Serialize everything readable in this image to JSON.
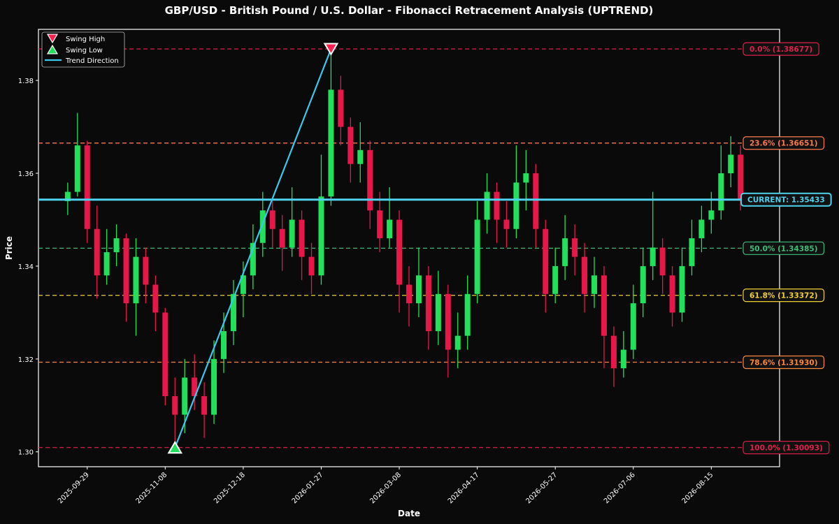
{
  "chart_data": {
    "type": "candlestick",
    "title": "GBP/USD - British Pound / U.S. Dollar - Fibonacci Retracement Analysis (UPTREND)",
    "x_label": "Date",
    "y_label": "Price",
    "xlim": [
      "2025-09-04",
      "2026-09-19"
    ],
    "xticks": [
      "2025-09-29",
      "2025-11-08",
      "2025-12-18",
      "2026-01-27",
      "2026-03-08",
      "2026-04-17",
      "2026-05-27",
      "2026-07-06",
      "2026-08-15"
    ],
    "ylim": [
      1.2968,
      1.391
    ],
    "yticks": [
      {
        "value": 1.3,
        "label": "1.30"
      },
      {
        "value": 1.32,
        "label": "1.32"
      },
      {
        "value": 1.34,
        "label": "1.34"
      },
      {
        "value": 1.36,
        "label": "1.36"
      },
      {
        "value": 1.38,
        "label": "1.38"
      }
    ],
    "up_color": "#22e05a",
    "down_color": "#e8174a",
    "x": [
      "2025-09-19",
      "2025-09-24",
      "2025-09-29",
      "2025-10-04",
      "2025-10-09",
      "2025-10-14",
      "2025-10-19",
      "2025-10-24",
      "2025-10-29",
      "2025-11-03",
      "2025-11-08",
      "2025-11-13",
      "2025-11-18",
      "2025-11-23",
      "2025-11-28",
      "2025-12-03",
      "2025-12-08",
      "2025-12-13",
      "2025-12-18",
      "2025-12-23",
      "2025-12-28",
      "2026-01-02",
      "2026-01-07",
      "2026-01-12",
      "2026-01-17",
      "2026-01-22",
      "2026-01-27",
      "2026-02-01",
      "2026-02-06",
      "2026-02-11",
      "2026-02-16",
      "2026-02-21",
      "2026-02-26",
      "2026-03-03",
      "2026-03-08",
      "2026-03-13",
      "2026-03-18",
      "2026-03-23",
      "2026-03-28",
      "2026-04-02",
      "2026-04-07",
      "2026-04-12",
      "2026-04-17",
      "2026-04-22",
      "2026-04-27",
      "2026-05-02",
      "2026-05-07",
      "2026-05-12",
      "2026-05-17",
      "2026-05-22",
      "2026-05-27",
      "2026-06-01",
      "2026-06-06",
      "2026-06-11",
      "2026-06-16",
      "2026-06-21",
      "2026-06-26",
      "2026-07-01",
      "2026-07-06",
      "2026-07-11",
      "2026-07-16",
      "2026-07-21",
      "2026-07-26",
      "2026-07-31",
      "2026-08-05",
      "2026-08-10",
      "2026-08-15",
      "2026-08-20",
      "2026-08-25",
      "2026-08-30"
    ],
    "open": [
      1.354,
      1.356,
      1.366,
      1.348,
      1.338,
      1.343,
      1.346,
      1.332,
      1.342,
      1.336,
      1.33,
      1.312,
      1.308,
      1.316,
      1.312,
      1.308,
      1.32,
      1.326,
      1.334,
      1.338,
      1.345,
      1.352,
      1.348,
      1.344,
      1.35,
      1.342,
      1.338,
      1.355,
      1.378,
      1.37,
      1.362,
      1.365,
      1.352,
      1.346,
      1.35,
      1.336,
      1.332,
      1.338,
      1.326,
      1.334,
      1.322,
      1.325,
      1.334,
      1.35,
      1.356,
      1.35,
      1.348,
      1.358,
      1.36,
      1.348,
      1.334,
      1.34,
      1.346,
      1.342,
      1.334,
      1.338,
      1.325,
      1.318,
      1.322,
      1.332,
      1.34,
      1.344,
      1.338,
      1.33,
      1.34,
      1.346,
      1.35,
      1.352,
      1.36,
      1.364
    ],
    "high": [
      1.358,
      1.373,
      1.367,
      1.353,
      1.348,
      1.349,
      1.347,
      1.346,
      1.344,
      1.338,
      1.331,
      1.316,
      1.32,
      1.321,
      1.315,
      1.324,
      1.33,
      1.337,
      1.341,
      1.349,
      1.356,
      1.354,
      1.351,
      1.357,
      1.352,
      1.345,
      1.364,
      1.38677,
      1.381,
      1.372,
      1.371,
      1.367,
      1.356,
      1.357,
      1.352,
      1.34,
      1.344,
      1.34,
      1.339,
      1.336,
      1.33,
      1.338,
      1.354,
      1.36,
      1.358,
      1.354,
      1.366,
      1.365,
      1.362,
      1.35,
      1.344,
      1.351,
      1.349,
      1.345,
      1.342,
      1.34,
      1.327,
      1.326,
      1.336,
      1.344,
      1.356,
      1.346,
      1.34,
      1.344,
      1.35,
      1.353,
      1.356,
      1.366,
      1.368,
      1.366
    ],
    "low": [
      1.351,
      1.355,
      1.345,
      1.333,
      1.336,
      1.34,
      1.328,
      1.325,
      1.332,
      1.326,
      1.31,
      1.30093,
      1.304,
      1.309,
      1.303,
      1.306,
      1.317,
      1.323,
      1.329,
      1.335,
      1.342,
      1.344,
      1.339,
      1.342,
      1.337,
      1.334,
      1.336,
      1.353,
      1.366,
      1.358,
      1.358,
      1.348,
      1.343,
      1.344,
      1.33,
      1.327,
      1.329,
      1.322,
      1.323,
      1.316,
      1.318,
      1.322,
      1.332,
      1.347,
      1.345,
      1.344,
      1.346,
      1.352,
      1.344,
      1.33,
      1.332,
      1.337,
      1.338,
      1.33,
      1.331,
      1.318,
      1.314,
      1.316,
      1.32,
      1.329,
      1.337,
      1.334,
      1.327,
      1.328,
      1.338,
      1.343,
      1.347,
      1.35,
      1.357,
      1.352
    ],
    "close": [
      1.356,
      1.366,
      1.348,
      1.338,
      1.343,
      1.346,
      1.332,
      1.342,
      1.336,
      1.33,
      1.312,
      1.308,
      1.316,
      1.312,
      1.308,
      1.32,
      1.326,
      1.334,
      1.338,
      1.345,
      1.352,
      1.348,
      1.344,
      1.35,
      1.342,
      1.338,
      1.355,
      1.378,
      1.37,
      1.362,
      1.365,
      1.352,
      1.346,
      1.35,
      1.336,
      1.332,
      1.338,
      1.326,
      1.334,
      1.322,
      1.325,
      1.334,
      1.35,
      1.356,
      1.35,
      1.348,
      1.358,
      1.36,
      1.348,
      1.334,
      1.34,
      1.346,
      1.342,
      1.334,
      1.338,
      1.325,
      1.318,
      1.322,
      1.332,
      1.34,
      1.344,
      1.338,
      1.33,
      1.34,
      1.346,
      1.35,
      1.352,
      1.36,
      1.364,
      1.35433
    ],
    "levels": [
      {
        "label": "0.0% (1.38677)",
        "value": 1.38677,
        "color": "#e0204a"
      },
      {
        "label": "23.6% (1.36651)",
        "value": 1.36651,
        "color": "#ff7a50"
      },
      {
        "label": "50.0% (1.34385)",
        "value": 1.34385,
        "color": "#3cbf7a"
      },
      {
        "label": "61.8% (1.33372)",
        "value": 1.33372,
        "color": "#f0d030"
      },
      {
        "label": "78.6% (1.31930)",
        "value": 1.3193,
        "color": "#ff8a3c"
      },
      {
        "label": "100.0% (1.30093)",
        "value": 1.30093,
        "color": "#e0204a"
      }
    ],
    "current": {
      "label": "CURRENT: 1.35433",
      "value": 1.35433,
      "color": "#4fd2ee"
    },
    "swing_high": {
      "name": "Swing High",
      "x": "2026-02-01",
      "value": 1.38677,
      "color": "#ff1f4f"
    },
    "swing_low": {
      "name": "Swing Low",
      "x": "2025-11-13",
      "value": 1.30093,
      "color": "#22e05a"
    },
    "trend": {
      "name": "Trend Direction",
      "color": "#3cc8ea"
    }
  }
}
